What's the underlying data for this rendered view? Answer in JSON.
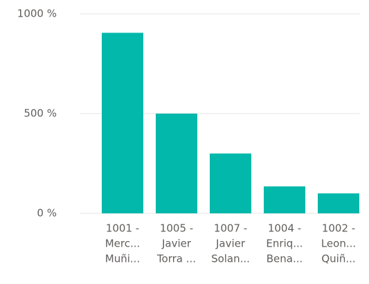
{
  "chart_data": {
    "type": "bar",
    "categories": [
      [
        "1001 -",
        "Merc...",
        "Muñi..."
      ],
      [
        "1005 -",
        "Javier",
        "Torra ..."
      ],
      [
        "1007 -",
        "Javier",
        "Solan..."
      ],
      [
        "1004 -",
        "Enriq...",
        "Bena..."
      ],
      [
        "1002 -",
        "Leon...",
        "Quiñ..."
      ]
    ],
    "values": [
      905,
      500,
      300,
      135,
      100
    ],
    "color": "#01b8aa",
    "ylim": [
      0,
      1000
    ],
    "yticks": [
      {
        "value": 0,
        "label": "0 %"
      },
      {
        "value": 500,
        "label": "500 %"
      },
      {
        "value": 1000,
        "label": "1000 %"
      }
    ],
    "grid": true
  }
}
